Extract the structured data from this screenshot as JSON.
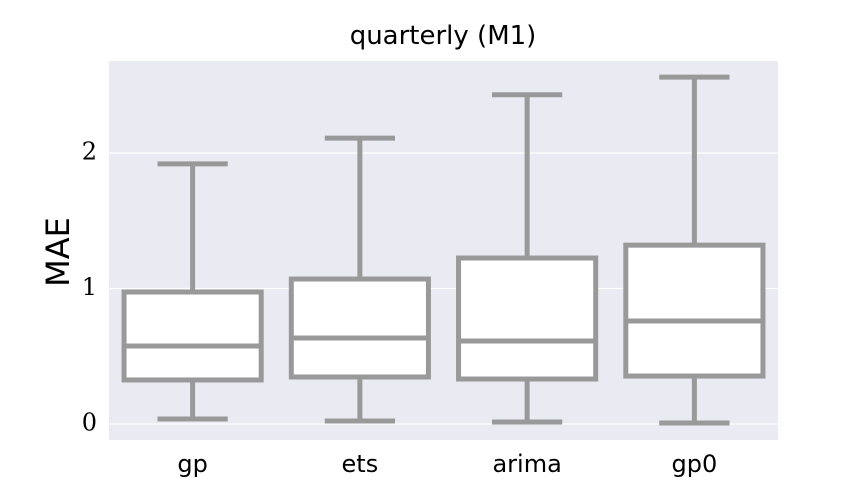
{
  "chart_data": {
    "type": "box",
    "title": "quarterly (M1)",
    "y_label": "MAE",
    "categories": [
      "gp",
      "ets",
      "arima",
      "gp0"
    ],
    "whisker_low": [
      0.037,
      0.022,
      0.015,
      0.007
    ],
    "q1": [
      0.325,
      0.347,
      0.332,
      0.354
    ],
    "median": [
      0.576,
      0.635,
      0.613,
      0.76
    ],
    "q3": [
      0.974,
      1.07,
      1.225,
      1.32
    ],
    "whisker_high": [
      1.92,
      2.11,
      2.43,
      2.56
    ],
    "color": "#999999",
    "ylim": [
      -0.118,
      2.679
    ],
    "yticks": [
      0,
      1,
      2
    ],
    "grid": true
  }
}
